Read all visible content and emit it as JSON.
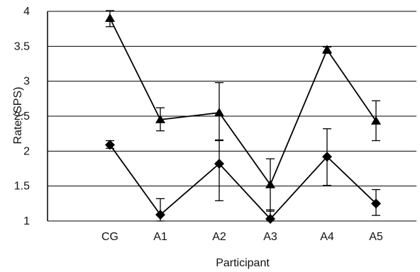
{
  "chart_data": {
    "type": "line",
    "title": "",
    "xlabel": "Participant",
    "ylabel": "Rate (SPS)",
    "categories": [
      "CG",
      "A1",
      "A2",
      "A3",
      "A4",
      "A5"
    ],
    "ylim": [
      1,
      4
    ],
    "yticks": [
      1,
      1.5,
      2,
      2.5,
      3,
      3.5,
      4
    ],
    "ytick_labels": [
      "1",
      "1.5",
      "2",
      "2.5",
      "3",
      "3.5",
      "4"
    ],
    "grid": "horizontal",
    "legend": "none",
    "series": [
      {
        "marker": "triangle",
        "color": "#000000",
        "values": [
          3.9,
          2.45,
          2.55,
          1.52,
          3.45,
          2.43
        ],
        "err_low": [
          3.78,
          2.29,
          2.16,
          1.14,
          3.4,
          2.15
        ],
        "err_high": [
          4.01,
          2.62,
          2.98,
          1.89,
          3.49,
          2.72
        ]
      },
      {
        "marker": "diamond",
        "color": "#000000",
        "values": [
          2.09,
          1.09,
          1.82,
          1.03,
          1.92,
          1.25
        ],
        "err_low": [
          2.04,
          1.0,
          1.29,
          1.0,
          1.51,
          1.08
        ],
        "err_high": [
          2.15,
          1.32,
          2.15,
          1.16,
          2.32,
          1.45
        ]
      }
    ]
  }
}
